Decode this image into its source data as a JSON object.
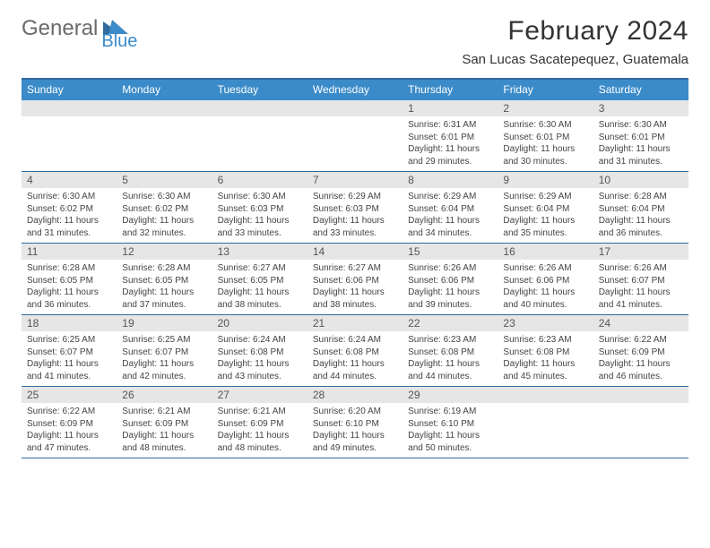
{
  "brand": {
    "part1": "General",
    "part2": "Blue"
  },
  "title": "February 2024",
  "location": "San Lucas Sacatepequez, Guatemala",
  "colors": {
    "header_bg": "#3b8bc9",
    "border": "#2f6b9f",
    "daynum_bg": "#e6e6e6",
    "text": "#444444",
    "logo_gray": "#6a6a6a",
    "logo_blue": "#3b8bc9"
  },
  "daysOfWeek": [
    "Sunday",
    "Monday",
    "Tuesday",
    "Wednesday",
    "Thursday",
    "Friday",
    "Saturday"
  ],
  "startOffset": 4,
  "days": [
    {
      "n": 1,
      "sunrise": "6:31 AM",
      "sunset": "6:01 PM",
      "daylight": "11 hours and 29 minutes."
    },
    {
      "n": 2,
      "sunrise": "6:30 AM",
      "sunset": "6:01 PM",
      "daylight": "11 hours and 30 minutes."
    },
    {
      "n": 3,
      "sunrise": "6:30 AM",
      "sunset": "6:01 PM",
      "daylight": "11 hours and 31 minutes."
    },
    {
      "n": 4,
      "sunrise": "6:30 AM",
      "sunset": "6:02 PM",
      "daylight": "11 hours and 31 minutes."
    },
    {
      "n": 5,
      "sunrise": "6:30 AM",
      "sunset": "6:02 PM",
      "daylight": "11 hours and 32 minutes."
    },
    {
      "n": 6,
      "sunrise": "6:30 AM",
      "sunset": "6:03 PM",
      "daylight": "11 hours and 33 minutes."
    },
    {
      "n": 7,
      "sunrise": "6:29 AM",
      "sunset": "6:03 PM",
      "daylight": "11 hours and 33 minutes."
    },
    {
      "n": 8,
      "sunrise": "6:29 AM",
      "sunset": "6:04 PM",
      "daylight": "11 hours and 34 minutes."
    },
    {
      "n": 9,
      "sunrise": "6:29 AM",
      "sunset": "6:04 PM",
      "daylight": "11 hours and 35 minutes."
    },
    {
      "n": 10,
      "sunrise": "6:28 AM",
      "sunset": "6:04 PM",
      "daylight": "11 hours and 36 minutes."
    },
    {
      "n": 11,
      "sunrise": "6:28 AM",
      "sunset": "6:05 PM",
      "daylight": "11 hours and 36 minutes."
    },
    {
      "n": 12,
      "sunrise": "6:28 AM",
      "sunset": "6:05 PM",
      "daylight": "11 hours and 37 minutes."
    },
    {
      "n": 13,
      "sunrise": "6:27 AM",
      "sunset": "6:05 PM",
      "daylight": "11 hours and 38 minutes."
    },
    {
      "n": 14,
      "sunrise": "6:27 AM",
      "sunset": "6:06 PM",
      "daylight": "11 hours and 38 minutes."
    },
    {
      "n": 15,
      "sunrise": "6:26 AM",
      "sunset": "6:06 PM",
      "daylight": "11 hours and 39 minutes."
    },
    {
      "n": 16,
      "sunrise": "6:26 AM",
      "sunset": "6:06 PM",
      "daylight": "11 hours and 40 minutes."
    },
    {
      "n": 17,
      "sunrise": "6:26 AM",
      "sunset": "6:07 PM",
      "daylight": "11 hours and 41 minutes."
    },
    {
      "n": 18,
      "sunrise": "6:25 AM",
      "sunset": "6:07 PM",
      "daylight": "11 hours and 41 minutes."
    },
    {
      "n": 19,
      "sunrise": "6:25 AM",
      "sunset": "6:07 PM",
      "daylight": "11 hours and 42 minutes."
    },
    {
      "n": 20,
      "sunrise": "6:24 AM",
      "sunset": "6:08 PM",
      "daylight": "11 hours and 43 minutes."
    },
    {
      "n": 21,
      "sunrise": "6:24 AM",
      "sunset": "6:08 PM",
      "daylight": "11 hours and 44 minutes."
    },
    {
      "n": 22,
      "sunrise": "6:23 AM",
      "sunset": "6:08 PM",
      "daylight": "11 hours and 44 minutes."
    },
    {
      "n": 23,
      "sunrise": "6:23 AM",
      "sunset": "6:08 PM",
      "daylight": "11 hours and 45 minutes."
    },
    {
      "n": 24,
      "sunrise": "6:22 AM",
      "sunset": "6:09 PM",
      "daylight": "11 hours and 46 minutes."
    },
    {
      "n": 25,
      "sunrise": "6:22 AM",
      "sunset": "6:09 PM",
      "daylight": "11 hours and 47 minutes."
    },
    {
      "n": 26,
      "sunrise": "6:21 AM",
      "sunset": "6:09 PM",
      "daylight": "11 hours and 48 minutes."
    },
    {
      "n": 27,
      "sunrise": "6:21 AM",
      "sunset": "6:09 PM",
      "daylight": "11 hours and 48 minutes."
    },
    {
      "n": 28,
      "sunrise": "6:20 AM",
      "sunset": "6:10 PM",
      "daylight": "11 hours and 49 minutes."
    },
    {
      "n": 29,
      "sunrise": "6:19 AM",
      "sunset": "6:10 PM",
      "daylight": "11 hours and 50 minutes."
    }
  ],
  "labels": {
    "sunrise": "Sunrise:",
    "sunset": "Sunset:",
    "daylight": "Daylight:"
  }
}
